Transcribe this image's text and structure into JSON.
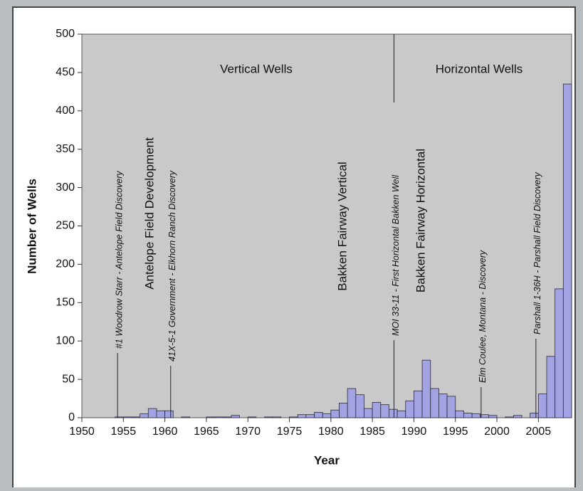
{
  "chart_data": {
    "type": "bar",
    "x_label": "Year",
    "y_label": "Number of Wells",
    "x": [
      1954,
      1955,
      1956,
      1957,
      1958,
      1959,
      1960,
      1962,
      1965,
      1966,
      1967,
      1968,
      1970,
      1972,
      1973,
      1975,
      1976,
      1977,
      1978,
      1979,
      1980,
      1981,
      1982,
      1983,
      1984,
      1985,
      1986,
      1987,
      1988,
      1989,
      1990,
      1991,
      1992,
      1993,
      1994,
      1995,
      1996,
      1997,
      1998,
      1999,
      2001,
      2002,
      2004,
      2005,
      2006,
      2007,
      2008
    ],
    "values": [
      1,
      1,
      1,
      5,
      12,
      9,
      9,
      1,
      1,
      1,
      1,
      3,
      1,
      1,
      1,
      1,
      4,
      4,
      7,
      5,
      10,
      19,
      38,
      30,
      12,
      20,
      17,
      11,
      9,
      22,
      35,
      75,
      38,
      31,
      28,
      9,
      6,
      5,
      4,
      3,
      1,
      3,
      6,
      31,
      80,
      168,
      435
    ],
    "color": "#a3a3e3",
    "xlim": [
      1950,
      2009
    ],
    "xticks": [
      1950,
      1955,
      1960,
      1965,
      1970,
      1975,
      1980,
      1985,
      1990,
      1995,
      2000,
      2005
    ],
    "ylim": [
      0,
      500
    ],
    "yticks": [
      0,
      50,
      100,
      150,
      200,
      250,
      300,
      350,
      400,
      450,
      500
    ],
    "phases": [
      "Vertical Wells",
      "Horizontal Wells"
    ],
    "notes": [
      "Antelope Field Development",
      "Bakken Fairway Vertical",
      "Bakken Fairway Horizontal"
    ],
    "events": [
      {
        "label": "#1 Woodrow Starr - Antelope Field Discovery",
        "x": 1954.3
      },
      {
        "label": "41X-5-1 Government - Elkhorn Ranch Discovery",
        "x": 1960.7
      },
      {
        "label": "MOI 33-11 - First Horizontal Bakken Well",
        "x": 1987.6
      },
      {
        "label": "Elm Coulee, Montana - Discovery",
        "x": 1998.1
      },
      {
        "label": "Parshall 1-36H - Parshall Field Discovery",
        "x": 2004.7
      }
    ]
  }
}
